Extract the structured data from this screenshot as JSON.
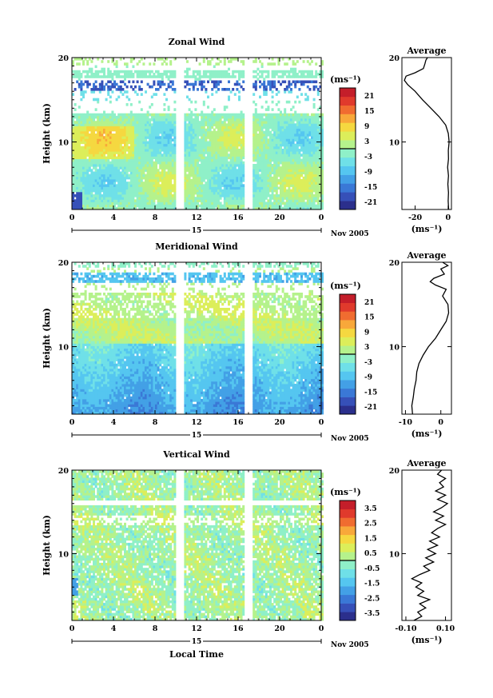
{
  "chart_data": [
    {
      "type": "heatmap",
      "title": "Zonal Wind",
      "ylabel": "Height (km)",
      "xlabel": "",
      "x_ticks": [
        "0",
        "4",
        "8",
        "12",
        "16",
        "20",
        "0"
      ],
      "y_ticks": [
        "10",
        "20"
      ],
      "xlim": [
        0,
        24
      ],
      "ylim": [
        2,
        20
      ],
      "date_label": "15",
      "month_label": "Nov 2005",
      "colorbar": {
        "unit_label": "(ms⁻¹)",
        "ticks": [
          "21",
          "15",
          "9",
          "3",
          "-3",
          "-9",
          "-15",
          "-21"
        ],
        "range": [
          -24,
          24
        ],
        "colors": [
          "#2b2f8c",
          "#3650b8",
          "#3a78d6",
          "#43a0e6",
          "#55c6f0",
          "#6fe0e8",
          "#8ff0c8",
          "#b5f28c",
          "#dcee5a",
          "#f5d840",
          "#f8a83a",
          "#f06c30",
          "#e03a2c",
          "#c41e2a"
        ]
      },
      "data_gaps_hours": [
        [
          10.0,
          10.7
        ],
        [
          16.6,
          17.3
        ]
      ],
      "profile": {
        "title": "Average",
        "xlabel": "(ms⁻¹)",
        "x_ticks": [
          "-20",
          "0"
        ],
        "y_ticks": [
          "10",
          "20"
        ],
        "xlim": [
          -28,
          2
        ],
        "ylim": [
          2,
          20
        ],
        "points": [
          [
            2,
            0.3
          ],
          [
            3,
            0.0
          ],
          [
            4,
            0.2
          ],
          [
            5,
            -0.2
          ],
          [
            6,
            0.2
          ],
          [
            7,
            -0.3
          ],
          [
            8,
            0.2
          ],
          [
            9,
            0.1
          ],
          [
            10,
            0.6
          ],
          [
            11,
            0.1
          ],
          [
            12,
            -1.5
          ],
          [
            13,
            -5.5
          ],
          [
            14,
            -10.5
          ],
          [
            15,
            -15.5
          ],
          [
            16,
            -20.0
          ],
          [
            16.8,
            -24.5
          ],
          [
            17.3,
            -26.5
          ],
          [
            17.8,
            -25.5
          ],
          [
            18.2,
            -20.0
          ],
          [
            18.7,
            -15.0
          ],
          [
            19.3,
            -14.0
          ],
          [
            19.7,
            -13.5
          ],
          [
            20,
            -12.5
          ]
        ]
      }
    },
    {
      "type": "heatmap",
      "title": "Meridional Wind",
      "ylabel": "Height (km)",
      "xlabel": "",
      "x_ticks": [
        "0",
        "4",
        "8",
        "12",
        "16",
        "20",
        "0"
      ],
      "y_ticks": [
        "10",
        "20"
      ],
      "xlim": [
        0,
        24
      ],
      "ylim": [
        2,
        20
      ],
      "date_label": "15",
      "month_label": "Nov 2005",
      "colorbar": {
        "unit_label": "(ms⁻¹)",
        "ticks": [
          "21",
          "15",
          "9",
          "3",
          "-3",
          "-9",
          "-15",
          "-21"
        ],
        "range": [
          -24,
          24
        ],
        "colors": [
          "#2b2f8c",
          "#3650b8",
          "#3a78d6",
          "#43a0e6",
          "#55c6f0",
          "#6fe0e8",
          "#8ff0c8",
          "#b5f28c",
          "#dcee5a",
          "#f5d840",
          "#f8a83a",
          "#f06c30",
          "#e03a2c",
          "#c41e2a"
        ]
      },
      "data_gaps_hours": [
        [
          10.0,
          10.7
        ],
        [
          16.6,
          17.3
        ]
      ],
      "profile": {
        "title": "Average",
        "xlabel": "(ms⁻¹)",
        "x_ticks": [
          "-10",
          "0"
        ],
        "y_ticks": [
          "10",
          "20"
        ],
        "xlim": [
          -11,
          3
        ],
        "ylim": [
          2,
          20
        ],
        "points": [
          [
            2,
            -8.0
          ],
          [
            3,
            -8.2
          ],
          [
            4,
            -7.8
          ],
          [
            5,
            -7.5
          ],
          [
            6,
            -7.0
          ],
          [
            7,
            -6.8
          ],
          [
            8,
            -6.2
          ],
          [
            9,
            -5.0
          ],
          [
            10,
            -3.5
          ],
          [
            11,
            -1.5
          ],
          [
            12,
            0.0
          ],
          [
            13,
            1.5
          ],
          [
            14,
            2.2
          ],
          [
            15,
            2.0
          ],
          [
            16,
            0.5
          ],
          [
            16.8,
            1.5
          ],
          [
            17.3,
            -1.5
          ],
          [
            17.7,
            -3.0
          ],
          [
            18.1,
            -2.0
          ],
          [
            18.6,
            1.0
          ],
          [
            19.2,
            0.0
          ],
          [
            19.6,
            2.0
          ],
          [
            20,
            0.5
          ]
        ]
      }
    },
    {
      "type": "heatmap",
      "title": "Vertical Wind",
      "ylabel": "Height (km)",
      "xlabel": "Local Time",
      "x_ticks": [
        "0",
        "4",
        "8",
        "12",
        "16",
        "20",
        "0"
      ],
      "y_ticks": [
        "10",
        "20"
      ],
      "xlim": [
        0,
        24
      ],
      "ylim": [
        2,
        20
      ],
      "date_label": "15",
      "month_label": "Nov 2005",
      "colorbar": {
        "unit_label": "(ms⁻¹)",
        "ticks": [
          "3.5",
          "2.5",
          "1.5",
          "0.5",
          "-0.5",
          "-1.5",
          "-2.5",
          "-3.5"
        ],
        "range": [
          -4,
          4
        ],
        "colors": [
          "#2b2f8c",
          "#3650b8",
          "#3a78d6",
          "#43a0e6",
          "#55c6f0",
          "#6fe0e8",
          "#8ff0c8",
          "#b5f28c",
          "#dcee5a",
          "#f5d840",
          "#f8a83a",
          "#f06c30",
          "#e03a2c",
          "#c41e2a"
        ]
      },
      "data_gaps_hours": [
        [
          10.0,
          10.7
        ],
        [
          16.6,
          17.3
        ]
      ],
      "profile": {
        "title": "Average",
        "xlabel": "(ms⁻¹)",
        "x_ticks": [
          "-0.10",
          "0.10"
        ],
        "y_ticks": [
          "10",
          "20"
        ],
        "xlim": [
          -0.12,
          0.13
        ],
        "ylim": [
          2,
          20
        ],
        "points": [
          [
            2,
            -0.06
          ],
          [
            2.5,
            -0.02
          ],
          [
            3,
            -0.04
          ],
          [
            3.5,
            0.0
          ],
          [
            4,
            -0.03
          ],
          [
            4.5,
            0.02
          ],
          [
            5,
            -0.04
          ],
          [
            5.5,
            -0.01
          ],
          [
            6,
            -0.05
          ],
          [
            6.5,
            -0.02
          ],
          [
            7,
            -0.07
          ],
          [
            7.5,
            -0.03
          ],
          [
            8,
            0.02
          ],
          [
            8.5,
            -0.01
          ],
          [
            9,
            0.04
          ],
          [
            9.5,
            0.0
          ],
          [
            10,
            0.05
          ],
          [
            10.5,
            0.01
          ],
          [
            11,
            0.06
          ],
          [
            11.5,
            0.02
          ],
          [
            12,
            0.07
          ],
          [
            12.5,
            0.03
          ],
          [
            13,
            0.06
          ],
          [
            13.5,
            0.1
          ],
          [
            14,
            0.05
          ],
          [
            14.5,
            0.09
          ],
          [
            15,
            0.04
          ],
          [
            15.5,
            0.08
          ],
          [
            16,
            0.11
          ],
          [
            16.5,
            0.06
          ],
          [
            17,
            0.1
          ],
          [
            17.5,
            0.05
          ],
          [
            18,
            0.09
          ],
          [
            18.5,
            0.07
          ],
          [
            19,
            0.1
          ],
          [
            19.5,
            0.06
          ],
          [
            20,
            0.08
          ]
        ]
      }
    }
  ]
}
